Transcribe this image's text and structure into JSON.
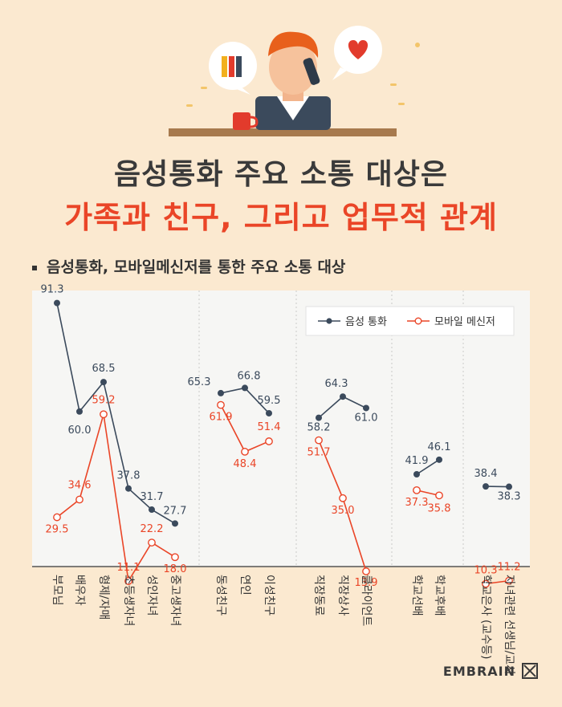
{
  "header": {
    "title_line1": "음성통화 주요 소통 대상은",
    "title_line2": "가족과 친구, 그리고 업무적 관계"
  },
  "subtitle": "음성통화, 모바일메신저를 통한 주요 소통 대상",
  "brand": "EMBRAIN",
  "chart_data": {
    "type": "line",
    "categories": [
      "부모님",
      "배우자",
      "형제/자매",
      "초등생자녀",
      "성인자녀",
      "중고생자녀",
      "동성친구",
      "연인",
      "이성친구",
      "직장동료",
      "직장상사",
      "클라이언트",
      "학교선배",
      "학교후배",
      "학교은사 (교수등)",
      "자녀관련 선생님/교사"
    ],
    "groups": [
      [
        0,
        5
      ],
      [
        6,
        8
      ],
      [
        9,
        11
      ],
      [
        12,
        13
      ],
      [
        14,
        15
      ]
    ],
    "series": [
      {
        "name": "음성 통화",
        "color": "#3b4a5c",
        "values": [
          91.3,
          60.0,
          68.5,
          37.8,
          31.7,
          27.7,
          65.3,
          66.8,
          59.5,
          58.2,
          64.3,
          61.0,
          41.9,
          46.1,
          38.4,
          38.3
        ]
      },
      {
        "name": "모바일 메신저",
        "color": "#ea4527",
        "values": [
          29.5,
          34.6,
          59.2,
          11.1,
          22.2,
          18.0,
          61.9,
          48.4,
          51.4,
          51.7,
          35.0,
          13.9,
          37.3,
          35.8,
          10.3,
          11.2
        ]
      }
    ],
    "ylim": [
      0,
      100
    ],
    "legend": "top-right",
    "grid": false
  }
}
